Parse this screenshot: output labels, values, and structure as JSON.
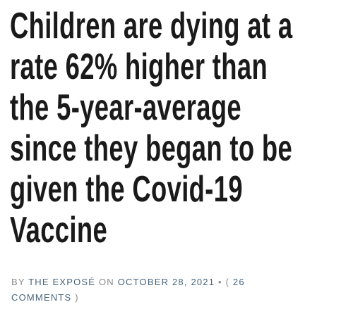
{
  "header": {
    "title_lines": [
      "Children are dying at a",
      "rate 62% higher than",
      "the 5-year-average",
      "since they began to be",
      "given the Covid-19",
      "Vaccine"
    ]
  },
  "byline": {
    "by": "BY",
    "author": "THE EXPOSÉ",
    "on": "ON",
    "date": "OCTOBER 28, 2021",
    "separator": "•",
    "open": "(",
    "comments": "26 COMMENTS",
    "close": ")"
  }
}
